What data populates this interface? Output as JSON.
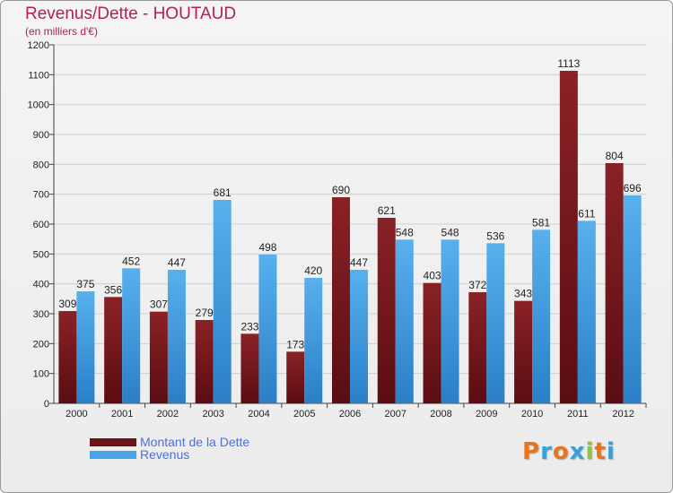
{
  "title": "Revenus/Dette - HOUTAUD",
  "subtitle": "(en milliers d'€)",
  "brand": "Proxiti",
  "colors": {
    "series1": "#7a1c1f",
    "series2": "#4aa3e6",
    "title": "#b0205a",
    "legend_text": "#4b6ee0"
  },
  "chart_data": {
    "type": "bar",
    "categories": [
      "2000",
      "2001",
      "2002",
      "2003",
      "2004",
      "2005",
      "2006",
      "2007",
      "2008",
      "2009",
      "2010",
      "2011",
      "2012"
    ],
    "series": [
      {
        "name": "Montant de la Dette",
        "values": [
          309,
          356,
          307,
          279,
          233,
          173,
          690,
          621,
          403,
          372,
          343,
          1113,
          804
        ]
      },
      {
        "name": "Revenus",
        "values": [
          375,
          452,
          447,
          681,
          498,
          420,
          447,
          548,
          548,
          536,
          581,
          611,
          696
        ]
      }
    ],
    "ylim": [
      0,
      1200
    ],
    "yticks": [
      0,
      100,
      200,
      300,
      400,
      500,
      600,
      700,
      800,
      900,
      1000,
      1100,
      1200
    ],
    "grid": true,
    "legend": "bottom-left"
  }
}
